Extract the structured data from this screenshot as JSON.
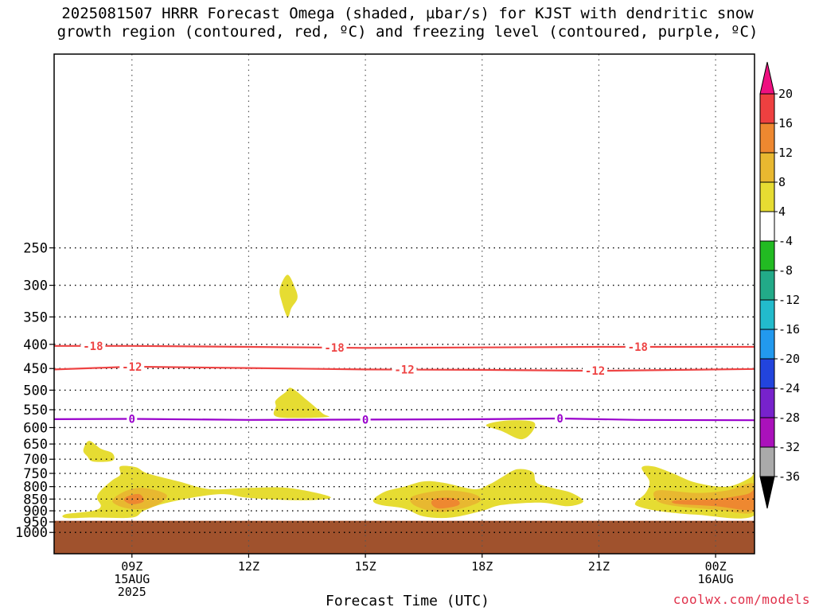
{
  "title": {
    "line1": "2025081507 HRRR Forecast Omega (shaded, µbar/s) for KJST with dendritic snow",
    "line2": "growth region (contoured, red, ºC) and freezing level (contoured, purple, ºC)"
  },
  "credit": "coolwx.com/models",
  "chart_data": {
    "type": "contour",
    "xlabel": "Forecast Time (UTC)",
    "ylabel": "",
    "x_range_hours": [
      7,
      25
    ],
    "y_scale": "log-pressure (hPa, inverted)",
    "y_ticks": [
      250,
      300,
      350,
      400,
      450,
      500,
      550,
      600,
      650,
      700,
      750,
      800,
      850,
      900,
      950,
      1000
    ],
    "x_ticks": [
      {
        "hour": 9,
        "lines": [
          "09Z",
          "15AUG",
          "2025"
        ]
      },
      {
        "hour": 12,
        "lines": [
          "12Z"
        ]
      },
      {
        "hour": 15,
        "lines": [
          "15Z"
        ]
      },
      {
        "hour": 18,
        "lines": [
          "18Z"
        ]
      },
      {
        "hour": 21,
        "lines": [
          "21Z"
        ]
      },
      {
        "hour": 24,
        "lines": [
          "00Z",
          "16AUG"
        ]
      }
    ],
    "grid": true,
    "ground_color": "#a0522d",
    "ground_top_hpa": 945,
    "contours": [
      {
        "level": -18,
        "color": "#ee4444",
        "label": "-18",
        "points": [
          [
            7.0,
            403
          ],
          [
            9.0,
            403
          ],
          [
            12.0,
            405
          ],
          [
            15.0,
            407
          ],
          [
            18.0,
            406
          ],
          [
            21.0,
            405
          ],
          [
            25.0,
            405
          ]
        ],
        "label_hours": [
          8.0,
          14.2,
          22.0
        ]
      },
      {
        "level": -12,
        "color": "#ee4444",
        "label": "-12",
        "points": [
          [
            7.0,
            452
          ],
          [
            9.0,
            446
          ],
          [
            12.0,
            449
          ],
          [
            15.0,
            452
          ],
          [
            18.0,
            453
          ],
          [
            21.0,
            455
          ],
          [
            25.0,
            451
          ]
        ],
        "label_hours": [
          9.0,
          16.0,
          20.9
        ]
      },
      {
        "level": 0,
        "color": "#9900cc",
        "label": "0",
        "points": [
          [
            7.0,
            576
          ],
          [
            9.0,
            575
          ],
          [
            12.0,
            578
          ],
          [
            15.0,
            577
          ],
          [
            18.0,
            576
          ],
          [
            20.0,
            574
          ],
          [
            22.0,
            578
          ],
          [
            25.0,
            579
          ]
        ],
        "label_hours": [
          9.0,
          15.0,
          20.0
        ]
      }
    ],
    "omega_regions": [
      {
        "level": 4,
        "color": "#e6dc32",
        "points": [
          [
            13.0,
            285
          ],
          [
            13.2,
            305
          ],
          [
            13.25,
            320
          ],
          [
            13.1,
            335
          ],
          [
            13.0,
            350
          ],
          [
            12.85,
            325
          ],
          [
            12.8,
            305
          ]
        ]
      },
      {
        "level": 4,
        "color": "#e6dc32",
        "points": [
          [
            12.7,
            525
          ],
          [
            12.95,
            505
          ],
          [
            13.1,
            495
          ],
          [
            13.5,
            525
          ],
          [
            13.9,
            560
          ],
          [
            14.0,
            570
          ],
          [
            12.75,
            570
          ],
          [
            12.7,
            540
          ]
        ]
      },
      {
        "level": 4,
        "color": "#e6dc32",
        "points": [
          [
            7.9,
            640
          ],
          [
            8.2,
            665
          ],
          [
            8.5,
            680
          ],
          [
            8.5,
            705
          ],
          [
            8.0,
            708
          ],
          [
            7.85,
            690
          ],
          [
            7.75,
            670
          ]
        ]
      },
      {
        "level": 4,
        "color": "#e6dc32",
        "points": [
          [
            18.1,
            593
          ],
          [
            18.6,
            580
          ],
          [
            19.3,
            583
          ],
          [
            19.3,
            610
          ],
          [
            19.0,
            635
          ],
          [
            18.5,
            610
          ]
        ]
      },
      {
        "level": 4,
        "color": "#e6dc32",
        "points": [
          [
            7.3,
            915
          ],
          [
            8.0,
            900
          ],
          [
            8.2,
            880
          ],
          [
            8.1,
            845
          ],
          [
            8.2,
            815
          ],
          [
            8.5,
            775
          ],
          [
            8.7,
            755
          ],
          [
            8.7,
            725
          ],
          [
            9.1,
            728
          ],
          [
            9.4,
            750
          ],
          [
            10.2,
            780
          ],
          [
            11.0,
            810
          ],
          [
            12.0,
            805
          ],
          [
            13.0,
            805
          ],
          [
            14.0,
            835
          ],
          [
            14.0,
            850
          ],
          [
            13.2,
            855
          ],
          [
            12.0,
            845
          ],
          [
            11.4,
            830
          ],
          [
            10.7,
            840
          ],
          [
            9.8,
            870
          ],
          [
            9.3,
            900
          ],
          [
            9.0,
            930
          ],
          [
            8.0,
            930
          ],
          [
            7.3,
            932
          ]
        ]
      },
      {
        "level": 4,
        "color": "#e6dc32",
        "points": [
          [
            15.2,
            855
          ],
          [
            15.5,
            820
          ],
          [
            16.0,
            800
          ],
          [
            16.5,
            780
          ],
          [
            17.0,
            785
          ],
          [
            17.8,
            810
          ],
          [
            18.2,
            790
          ],
          [
            18.5,
            765
          ],
          [
            18.9,
            735
          ],
          [
            19.3,
            745
          ],
          [
            19.4,
            785
          ],
          [
            19.8,
            805
          ],
          [
            20.3,
            825
          ],
          [
            20.6,
            860
          ],
          [
            20.2,
            880
          ],
          [
            19.5,
            865
          ],
          [
            18.5,
            875
          ],
          [
            18.0,
            900
          ],
          [
            17.2,
            930
          ],
          [
            16.5,
            925
          ],
          [
            16.0,
            890
          ],
          [
            15.4,
            875
          ]
        ]
      },
      {
        "level": 4,
        "color": "#e6dc32",
        "points": [
          [
            22.1,
            730
          ],
          [
            22.4,
            725
          ],
          [
            22.9,
            750
          ],
          [
            23.5,
            785
          ],
          [
            24.3,
            800
          ],
          [
            24.9,
            765
          ],
          [
            25.0,
            745
          ],
          [
            25.0,
            920
          ],
          [
            23.5,
            917
          ],
          [
            22.5,
            900
          ],
          [
            22.0,
            880
          ],
          [
            21.95,
            862
          ],
          [
            22.2,
            825
          ],
          [
            22.3,
            780
          ]
        ]
      },
      {
        "level": 8,
        "color": "#e8b830",
        "points": [
          [
            8.8,
            820
          ],
          [
            9.3,
            805
          ],
          [
            9.9,
            835
          ],
          [
            9.5,
            885
          ],
          [
            8.9,
            890
          ],
          [
            8.5,
            860
          ]
        ]
      },
      {
        "level": 8,
        "color": "#e8b830",
        "points": [
          [
            16.2,
            840
          ],
          [
            17.0,
            815
          ],
          [
            17.8,
            830
          ],
          [
            17.9,
            865
          ],
          [
            17.0,
            905
          ],
          [
            16.3,
            880
          ]
        ]
      },
      {
        "level": 8,
        "color": "#e8b830",
        "points": [
          [
            22.5,
            815
          ],
          [
            23.5,
            825
          ],
          [
            24.3,
            815
          ],
          [
            25.0,
            790
          ],
          [
            25.0,
            905
          ],
          [
            24.0,
            895
          ],
          [
            23.0,
            880
          ],
          [
            22.5,
            858
          ]
        ]
      },
      {
        "level": 12,
        "color": "#ee8830",
        "points": [
          [
            8.9,
            838
          ],
          [
            9.2,
            830
          ],
          [
            9.3,
            860
          ],
          [
            9.0,
            872
          ],
          [
            8.8,
            855
          ]
        ]
      },
      {
        "level": 12,
        "color": "#ee8830",
        "points": [
          [
            16.8,
            848
          ],
          [
            17.3,
            848
          ],
          [
            17.4,
            875
          ],
          [
            16.9,
            890
          ],
          [
            16.7,
            870
          ]
        ]
      },
      {
        "level": 12,
        "color": "#ee8830",
        "points": [
          [
            23.0,
            855
          ],
          [
            24.0,
            850
          ],
          [
            24.8,
            830
          ],
          [
            25.0,
            815
          ],
          [
            25.0,
            895
          ],
          [
            24.0,
            880
          ],
          [
            23.0,
            870
          ]
        ]
      }
    ],
    "colorbar": {
      "levels": [
        "20",
        "16",
        "12",
        "8",
        "4",
        "-4",
        "-8",
        "-12",
        "-16",
        "-20",
        "-24",
        "-28",
        "-32",
        "-36"
      ],
      "colors": [
        "#ee1080",
        "#ee4040",
        "#ee8830",
        "#e8b830",
        "#e6dc32",
        "#ffffff",
        "#22bb22",
        "#22aa88",
        "#22bbcc",
        "#2299ee",
        "#2244dd",
        "#7722cc",
        "#aa11bb",
        "#aaaaaa",
        "#000000"
      ]
    }
  }
}
